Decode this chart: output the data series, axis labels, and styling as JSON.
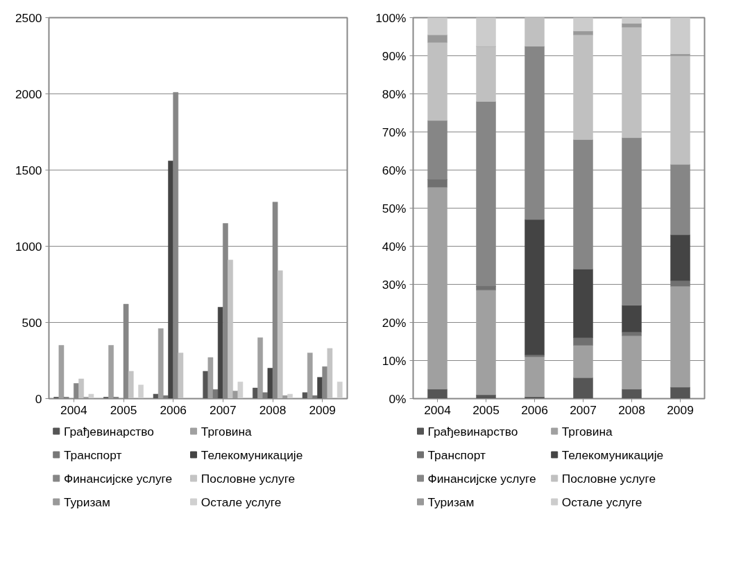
{
  "chart_data": [
    {
      "type": "bar",
      "categories": [
        "2004",
        "2005",
        "2006",
        "2007",
        "2008",
        "2009"
      ],
      "ylim": [
        0,
        2500
      ],
      "yticks": [
        0,
        500,
        1000,
        1500,
        2000,
        2500
      ],
      "grid": "y",
      "legend": "bottom",
      "series": [
        {
          "name": "Грађевинарство",
          "color": "#555555",
          "values": [
            10,
            10,
            30,
            180,
            70,
            40
          ]
        },
        {
          "name": "Трговина",
          "color": "#a0a0a0",
          "values": [
            350,
            350,
            460,
            270,
            400,
            300
          ]
        },
        {
          "name": "Транспорт",
          "color": "#777777",
          "values": [
            10,
            10,
            20,
            60,
            40,
            20
          ]
        },
        {
          "name": "Телекомуникације",
          "color": "#444444",
          "values": [
            0,
            0,
            1560,
            600,
            200,
            140
          ]
        },
        {
          "name": "Финансијске услуге",
          "color": "#868686",
          "values": [
            100,
            620,
            2010,
            1150,
            1290,
            210
          ]
        },
        {
          "name": "Пословне услуге",
          "color": "#c4c4c4",
          "values": [
            130,
            180,
            300,
            910,
            840,
            330
          ]
        },
        {
          "name": "Туризам",
          "color": "#999999",
          "values": [
            10,
            0,
            0,
            50,
            20,
            0
          ]
        },
        {
          "name": "Остале услуге",
          "color": "#d0d0d0",
          "values": [
            30,
            90,
            0,
            110,
            30,
            110
          ]
        }
      ]
    },
    {
      "type": "bar",
      "stacked": true,
      "categories": [
        "2004",
        "2005",
        "2006",
        "2007",
        "2008",
        "2009"
      ],
      "ylim": [
        0,
        100
      ],
      "yticks": [
        {
          "value": 0,
          "label": "0%"
        },
        {
          "value": 10,
          "label": "10%"
        },
        {
          "value": 20,
          "label": "20%"
        },
        {
          "value": 30,
          "label": "30%"
        },
        {
          "value": 40,
          "label": "40%"
        },
        {
          "value": 50,
          "label": "50%"
        },
        {
          "value": 60,
          "label": "60%"
        },
        {
          "value": 70,
          "label": "70%"
        },
        {
          "value": 80,
          "label": "80%"
        },
        {
          "value": 90,
          "label": "90%"
        },
        {
          "value": 100,
          "label": "100%"
        }
      ],
      "grid": "y",
      "legend": "bottom",
      "series": [
        {
          "name": "Грађевинарство",
          "color": "#555555",
          "values": [
            2.5,
            1,
            0.5,
            5.5,
            2.5,
            3
          ]
        },
        {
          "name": "Трговина",
          "color": "#a0a0a0",
          "values": [
            53,
            27.5,
            10.5,
            8.5,
            14,
            26.5
          ]
        },
        {
          "name": "Транспорт",
          "color": "#707070",
          "values": [
            2,
            1,
            0.5,
            2,
            1,
            1.5
          ]
        },
        {
          "name": "Телекомуникације",
          "color": "#444444",
          "values": [
            0,
            0,
            35.5,
            18,
            7,
            12
          ]
        },
        {
          "name": "Финансијске услуге",
          "color": "#868686",
          "values": [
            15.5,
            48.5,
            45.5,
            34,
            44,
            18.5
          ]
        },
        {
          "name": "Пословне услуге",
          "color": "#c0c0c0",
          "values": [
            20.5,
            14.5,
            7.5,
            27.5,
            29,
            28.5
          ]
        },
        {
          "name": "Туризам",
          "color": "#999999",
          "values": [
            2,
            0,
            0,
            1,
            1,
            0.5
          ]
        },
        {
          "name": "Остале услуге",
          "color": "#cccccc",
          "values": [
            4.5,
            7.5,
            0,
            3.5,
            1.5,
            9.5
          ]
        }
      ]
    }
  ]
}
